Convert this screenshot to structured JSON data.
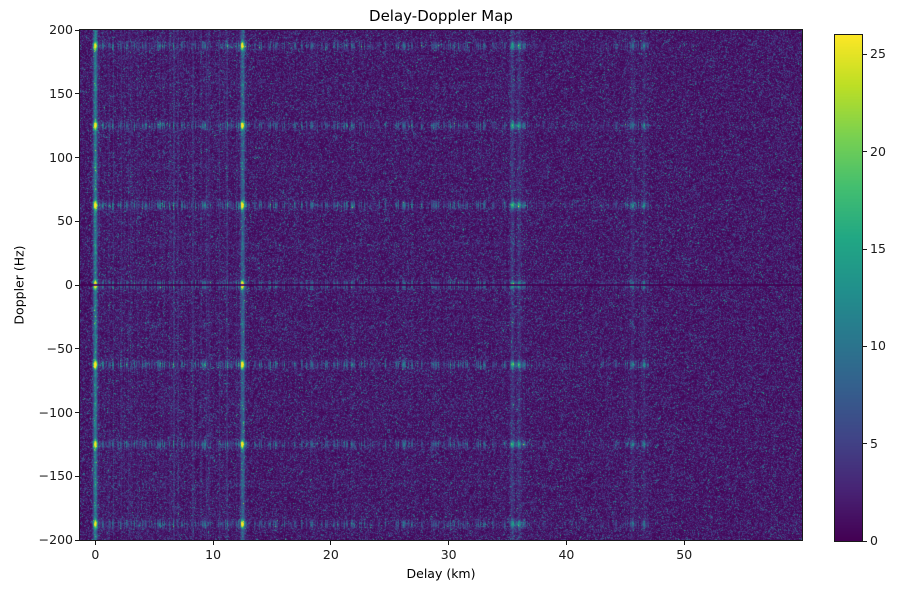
{
  "chart_data": {
    "type": "heatmap",
    "title": "Delay-Doppler Map",
    "xlabel": "Delay (km)",
    "ylabel": "Doppler (Hz)",
    "xlim": [
      -1.3,
      60.0
    ],
    "ylim": [
      -200,
      200
    ],
    "vmin": 0,
    "vmax": 26,
    "colormap": "viridis",
    "colormap_stops": [
      "#440154",
      "#482475",
      "#414487",
      "#355f8d",
      "#2a788e",
      "#21918c",
      "#22a884",
      "#44bf70",
      "#7ad151",
      "#bddf26",
      "#fde725"
    ],
    "grid": false,
    "legend": "colorbar-right",
    "x_ticks": [
      {
        "value": 0,
        "label": "0"
      },
      {
        "value": 10,
        "label": "10"
      },
      {
        "value": 20,
        "label": "20"
      },
      {
        "value": 30,
        "label": "30"
      },
      {
        "value": 40,
        "label": "40"
      },
      {
        "value": 50,
        "label": "50"
      }
    ],
    "y_ticks": [
      {
        "value": 200,
        "label": "200"
      },
      {
        "value": 150,
        "label": "150"
      },
      {
        "value": 100,
        "label": "100"
      },
      {
        "value": 50,
        "label": "50"
      },
      {
        "value": 0,
        "label": "0"
      },
      {
        "value": -50,
        "label": "−50"
      },
      {
        "value": -100,
        "label": "−100"
      },
      {
        "value": -150,
        "label": "−150"
      },
      {
        "value": -200,
        "label": "−200"
      }
    ],
    "colorbar_ticks": [
      {
        "value": 0,
        "label": "0"
      },
      {
        "value": 5,
        "label": "5"
      },
      {
        "value": 10,
        "label": "10"
      },
      {
        "value": 15,
        "label": "15"
      },
      {
        "value": 20,
        "label": "20"
      },
      {
        "value": 25,
        "label": "25"
      }
    ],
    "doppler_bands": [
      {
        "doppler": 0,
        "amp": 1.0
      },
      {
        "doppler": 62.5,
        "amp": 0.92
      },
      {
        "doppler": -62.5,
        "amp": 0.92
      },
      {
        "doppler": 125,
        "amp": 0.8
      },
      {
        "doppler": -125,
        "amp": 0.8
      },
      {
        "doppler": 187.5,
        "amp": 0.75
      },
      {
        "doppler": -187.5,
        "amp": 0.75
      },
      {
        "doppler": 31.25,
        "amp": 0.08
      },
      {
        "doppler": -31.25,
        "amp": 0.08
      },
      {
        "doppler": 93.75,
        "amp": 0.08
      },
      {
        "doppler": -93.75,
        "amp": 0.08
      },
      {
        "doppler": 156.25,
        "amp": 0.08
      },
      {
        "doppler": -156.25,
        "amp": 0.08
      }
    ],
    "delay_peaks": [
      {
        "delay": 0,
        "amp": 26,
        "vert": 9
      },
      {
        "delay": 12.5,
        "amp": 23,
        "vert": 6
      },
      {
        "delay": 35.4,
        "amp": 14,
        "vert": 2.5
      },
      {
        "delay": 36.0,
        "amp": 12,
        "vert": 2
      },
      {
        "delay": 45.6,
        "amp": 7,
        "vert": 1.2
      },
      {
        "delay": 46.6,
        "amp": 6,
        "vert": 1
      }
    ],
    "zero_doppler_null": true,
    "noise_scale": 2.2,
    "striations": {
      "max_extent_km": 47,
      "strength": 13
    }
  }
}
